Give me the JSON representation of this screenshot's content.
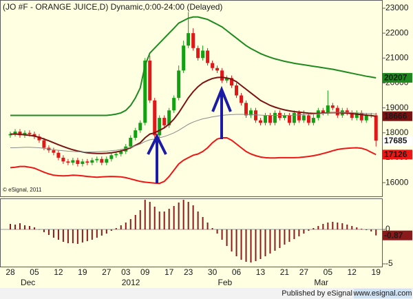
{
  "chart_data": [
    {
      "type": "candlestick",
      "title": "(JO #F - ORANGE JUICE,D) Dynamic,0:00-24:00 (Delayed)",
      "annotation": "© eSignal, 2011",
      "categories": [
        "28",
        null,
        null,
        null,
        null,
        "05",
        null,
        null,
        null,
        null,
        "12",
        null,
        null,
        null,
        null,
        "19",
        null,
        null,
        null,
        null,
        "27",
        null,
        null,
        null,
        "03",
        null,
        null,
        null,
        "09",
        null,
        null,
        null,
        null,
        "17",
        null,
        null,
        null,
        "23",
        null,
        null,
        null,
        null,
        "30",
        null,
        null,
        null,
        null,
        "06",
        null,
        null,
        null,
        null,
        "13",
        null,
        null,
        null,
        null,
        "21",
        null,
        null,
        null,
        "27",
        null,
        null,
        null,
        null,
        "05",
        null,
        null,
        null,
        null,
        "12",
        null,
        null,
        null,
        null,
        "19"
      ],
      "month_ticks": [
        {
          "value": 3,
          "label": "Dec"
        },
        {
          "value": 24,
          "label": "2012"
        },
        {
          "value": 44,
          "label": "Feb"
        },
        {
          "value": 64,
          "label": "Mar"
        }
      ],
      "open": [
        17900,
        17950,
        18050,
        17900,
        18000,
        17950,
        17850,
        17700,
        17400,
        17300,
        17200,
        17000,
        16850,
        16800,
        16900,
        16750,
        16850,
        16800,
        16900,
        16950,
        16800,
        16950,
        17100,
        17150,
        17250,
        17450,
        17800,
        18100,
        18400,
        20900,
        19300,
        17900,
        18600,
        18300,
        18900,
        19400,
        20500,
        21500,
        22000,
        21400,
        21000,
        21300,
        20800,
        20600,
        20500,
        20100,
        20200,
        19900,
        19500,
        19200,
        18700,
        18900,
        18500,
        18400,
        18700,
        18400,
        18800,
        18600,
        18700,
        18400,
        18800,
        18500,
        18700,
        18400,
        18600,
        18900,
        18800,
        19100,
        19000,
        18700,
        18900,
        18800,
        18600,
        18800,
        18500,
        18700,
        18700
      ],
      "high": [
        18050,
        18150,
        18150,
        18100,
        18100,
        18050,
        17950,
        17800,
        17500,
        17400,
        17300,
        17100,
        16950,
        17000,
        17000,
        16950,
        16950,
        17000,
        17050,
        17050,
        17050,
        17200,
        17250,
        17350,
        17550,
        17900,
        18200,
        18500,
        21000,
        21100,
        19400,
        18700,
        18700,
        19000,
        19500,
        20700,
        21700,
        22850,
        22200,
        21500,
        21500,
        21400,
        20900,
        20700,
        20600,
        20300,
        20300,
        20000,
        19600,
        19300,
        19000,
        19000,
        18600,
        18800,
        18800,
        18900,
        18900,
        18800,
        18800,
        18900,
        18900,
        18900,
        18800,
        18800,
        19000,
        19000,
        19700,
        19200,
        19100,
        19000,
        19000,
        18900,
        18900,
        18900,
        18800,
        18800,
        18800
      ],
      "low": [
        17800,
        17850,
        17800,
        17800,
        17850,
        17750,
        17600,
        17300,
        17200,
        17100,
        16900,
        16750,
        16700,
        16700,
        16650,
        16650,
        16700,
        16700,
        16800,
        16700,
        16700,
        16850,
        17000,
        17050,
        17150,
        17350,
        17700,
        18000,
        18300,
        19200,
        17800,
        17800,
        18200,
        18200,
        18800,
        19300,
        20400,
        21400,
        21300,
        20900,
        20900,
        20700,
        20500,
        20400,
        20000,
        20000,
        19800,
        19400,
        19100,
        18600,
        18600,
        18400,
        18300,
        18300,
        18300,
        18300,
        18500,
        18500,
        18300,
        18300,
        18400,
        18400,
        18300,
        18300,
        18500,
        18700,
        18700,
        18900,
        18600,
        18600,
        18700,
        18500,
        18500,
        18400,
        18400,
        18600,
        17450
      ],
      "close": [
        17950,
        18050,
        17900,
        18000,
        17950,
        17850,
        17700,
        17400,
        17300,
        17200,
        17000,
        16850,
        16800,
        16900,
        16750,
        16850,
        16800,
        16900,
        16950,
        16800,
        16950,
        17100,
        17150,
        17250,
        17450,
        17800,
        18100,
        18400,
        20900,
        19300,
        17900,
        18600,
        18300,
        18900,
        19400,
        20500,
        21500,
        22000,
        21400,
        21000,
        21300,
        20800,
        20600,
        20500,
        20100,
        20200,
        19900,
        19500,
        19200,
        18700,
        18900,
        18500,
        18400,
        18700,
        18400,
        18800,
        18600,
        18700,
        18400,
        18800,
        18500,
        18700,
        18400,
        18600,
        18900,
        18800,
        19100,
        19000,
        18700,
        18900,
        18800,
        18600,
        18800,
        18500,
        18700,
        18700,
        17685
      ],
      "up_color": "#13a013",
      "down_color": "#e01818",
      "label_last_close": true,
      "series": [
        {
          "color": "#1c8a1c",
          "label_last": true,
          "values": [
            18700,
            18700,
            18700,
            18700,
            18700,
            18700,
            18700,
            18700,
            18700,
            18700,
            18700,
            18700,
            18700,
            18700,
            18700,
            18700,
            18700,
            18700,
            18700,
            18700,
            18700,
            18720,
            18750,
            18800,
            18900,
            19100,
            19400,
            19800,
            20700,
            21200,
            21400,
            21600,
            21800,
            22000,
            22200,
            22400,
            22500,
            22600,
            22650,
            22650,
            22600,
            22550,
            22450,
            22350,
            22250,
            22100,
            21950,
            21800,
            21650,
            21500,
            21380,
            21280,
            21180,
            21100,
            21030,
            20970,
            20920,
            20870,
            20830,
            20790,
            20760,
            20730,
            20700,
            20670,
            20640,
            20610,
            20580,
            20550,
            20510,
            20470,
            20430,
            20390,
            20350,
            20310,
            20270,
            20240,
            20207
          ]
        },
        {
          "color": "#7a1212",
          "label_last": true,
          "values": [
            17950,
            17950,
            17940,
            17920,
            17900,
            17870,
            17820,
            17750,
            17680,
            17600,
            17520,
            17450,
            17380,
            17320,
            17270,
            17230,
            17200,
            17180,
            17170,
            17170,
            17180,
            17200,
            17230,
            17270,
            17330,
            17400,
            17500,
            17600,
            17800,
            17950,
            18000,
            18100,
            18200,
            18350,
            18550,
            18800,
            19100,
            19400,
            19650,
            19850,
            20000,
            20100,
            20180,
            20220,
            20230,
            20200,
            20150,
            20050,
            19900,
            19750,
            19600,
            19450,
            19300,
            19200,
            19100,
            19030,
            18970,
            18920,
            18880,
            18850,
            18830,
            18810,
            18790,
            18780,
            18780,
            18790,
            18800,
            18810,
            18810,
            18800,
            18790,
            18770,
            18750,
            18730,
            18710,
            18690,
            18666
          ]
        },
        {
          "color": "#ee1515",
          "label_last": true,
          "values": [
            16600,
            16620,
            16650,
            16650,
            16620,
            16580,
            16500,
            16420,
            16350,
            16300,
            16280,
            16270,
            16280,
            16300,
            16290,
            16270,
            16250,
            16230,
            16220,
            16230,
            16240,
            16250,
            16240,
            16230,
            16200,
            16150,
            16100,
            16050,
            16020,
            16000,
            15980,
            15970,
            16050,
            16250,
            16500,
            16750,
            16900,
            17000,
            17100,
            17150,
            17250,
            17400,
            17600,
            17750,
            17800,
            17800,
            17700,
            17550,
            17400,
            17250,
            17150,
            17080,
            17030,
            17000,
            16990,
            16990,
            17000,
            17000,
            17000,
            17000,
            17010,
            17030,
            17050,
            17080,
            17120,
            17170,
            17220,
            17280,
            17330,
            17360,
            17380,
            17390,
            17400,
            17380,
            17320,
            17220,
            17126
          ]
        },
        {
          "color": "#8a8a8a",
          "label_last": false,
          "values": [
            17400,
            17400,
            17410,
            17420,
            17420,
            17410,
            17400,
            17380,
            17350,
            17320,
            17300,
            17280,
            17260,
            17250,
            17240,
            17230,
            17230,
            17230,
            17240,
            17250,
            17260,
            17280,
            17300,
            17330,
            17370,
            17420,
            17480,
            17550,
            17650,
            17720,
            17750,
            17800,
            17850,
            17920,
            18000,
            18100,
            18220,
            18340,
            18430,
            18500,
            18560,
            18600,
            18640,
            18670,
            18700,
            18720,
            18730,
            18740,
            18740,
            18740,
            18730,
            18720,
            18710,
            18700,
            18700,
            18700,
            18700,
            18700,
            18700,
            18710,
            18720,
            18730,
            18740,
            18750,
            18760,
            18780,
            18800,
            18810,
            18820,
            18820,
            18820,
            18810,
            18800,
            18790,
            18780,
            18770,
            18750
          ]
        }
      ],
      "ylim": [
        15450,
        23330
      ],
      "yticks": [
        16000,
        17000,
        18000,
        19000,
        20000,
        21000,
        22000,
        23000
      ]
    },
    {
      "type": "bar",
      "color": "#8b1a1a",
      "label_last": true,
      "values": [
        0.8,
        0.7,
        0.9,
        0.6,
        0.5,
        0.3,
        0.0,
        -0.4,
        -0.8,
        -1.2,
        -1.5,
        -1.8,
        -2.0,
        -2.0,
        -2.1,
        -1.9,
        -1.7,
        -1.5,
        -1.2,
        -0.9,
        -0.6,
        -0.2,
        0.2,
        0.6,
        1.0,
        1.5,
        2.1,
        2.8,
        4.3,
        4.0,
        3.3,
        2.6,
        2.6,
        3.0,
        3.4,
        3.9,
        4.3,
        4.0,
        3.5,
        2.6,
        1.8,
        1.0,
        0.2,
        -0.6,
        -1.5,
        -2.4,
        -3.2,
        -3.9,
        -4.4,
        -4.7,
        -4.8,
        -4.6,
        -4.3,
        -3.9,
        -3.5,
        -3.1,
        -2.7,
        -2.2,
        -1.8,
        -1.4,
        -1.0,
        -0.6,
        -0.2,
        0.2,
        0.5,
        0.8,
        1.0,
        1.1,
        1.0,
        0.9,
        0.7,
        0.5,
        0.3,
        0.1,
        -0.1,
        -0.3,
        -0.87
      ],
      "ylim": [
        -5.5,
        4.5
      ],
      "yticks": [
        0,
        -5
      ]
    }
  ],
  "footer": {
    "text": "Published by eSignal",
    "url": "www.esignal.com"
  }
}
